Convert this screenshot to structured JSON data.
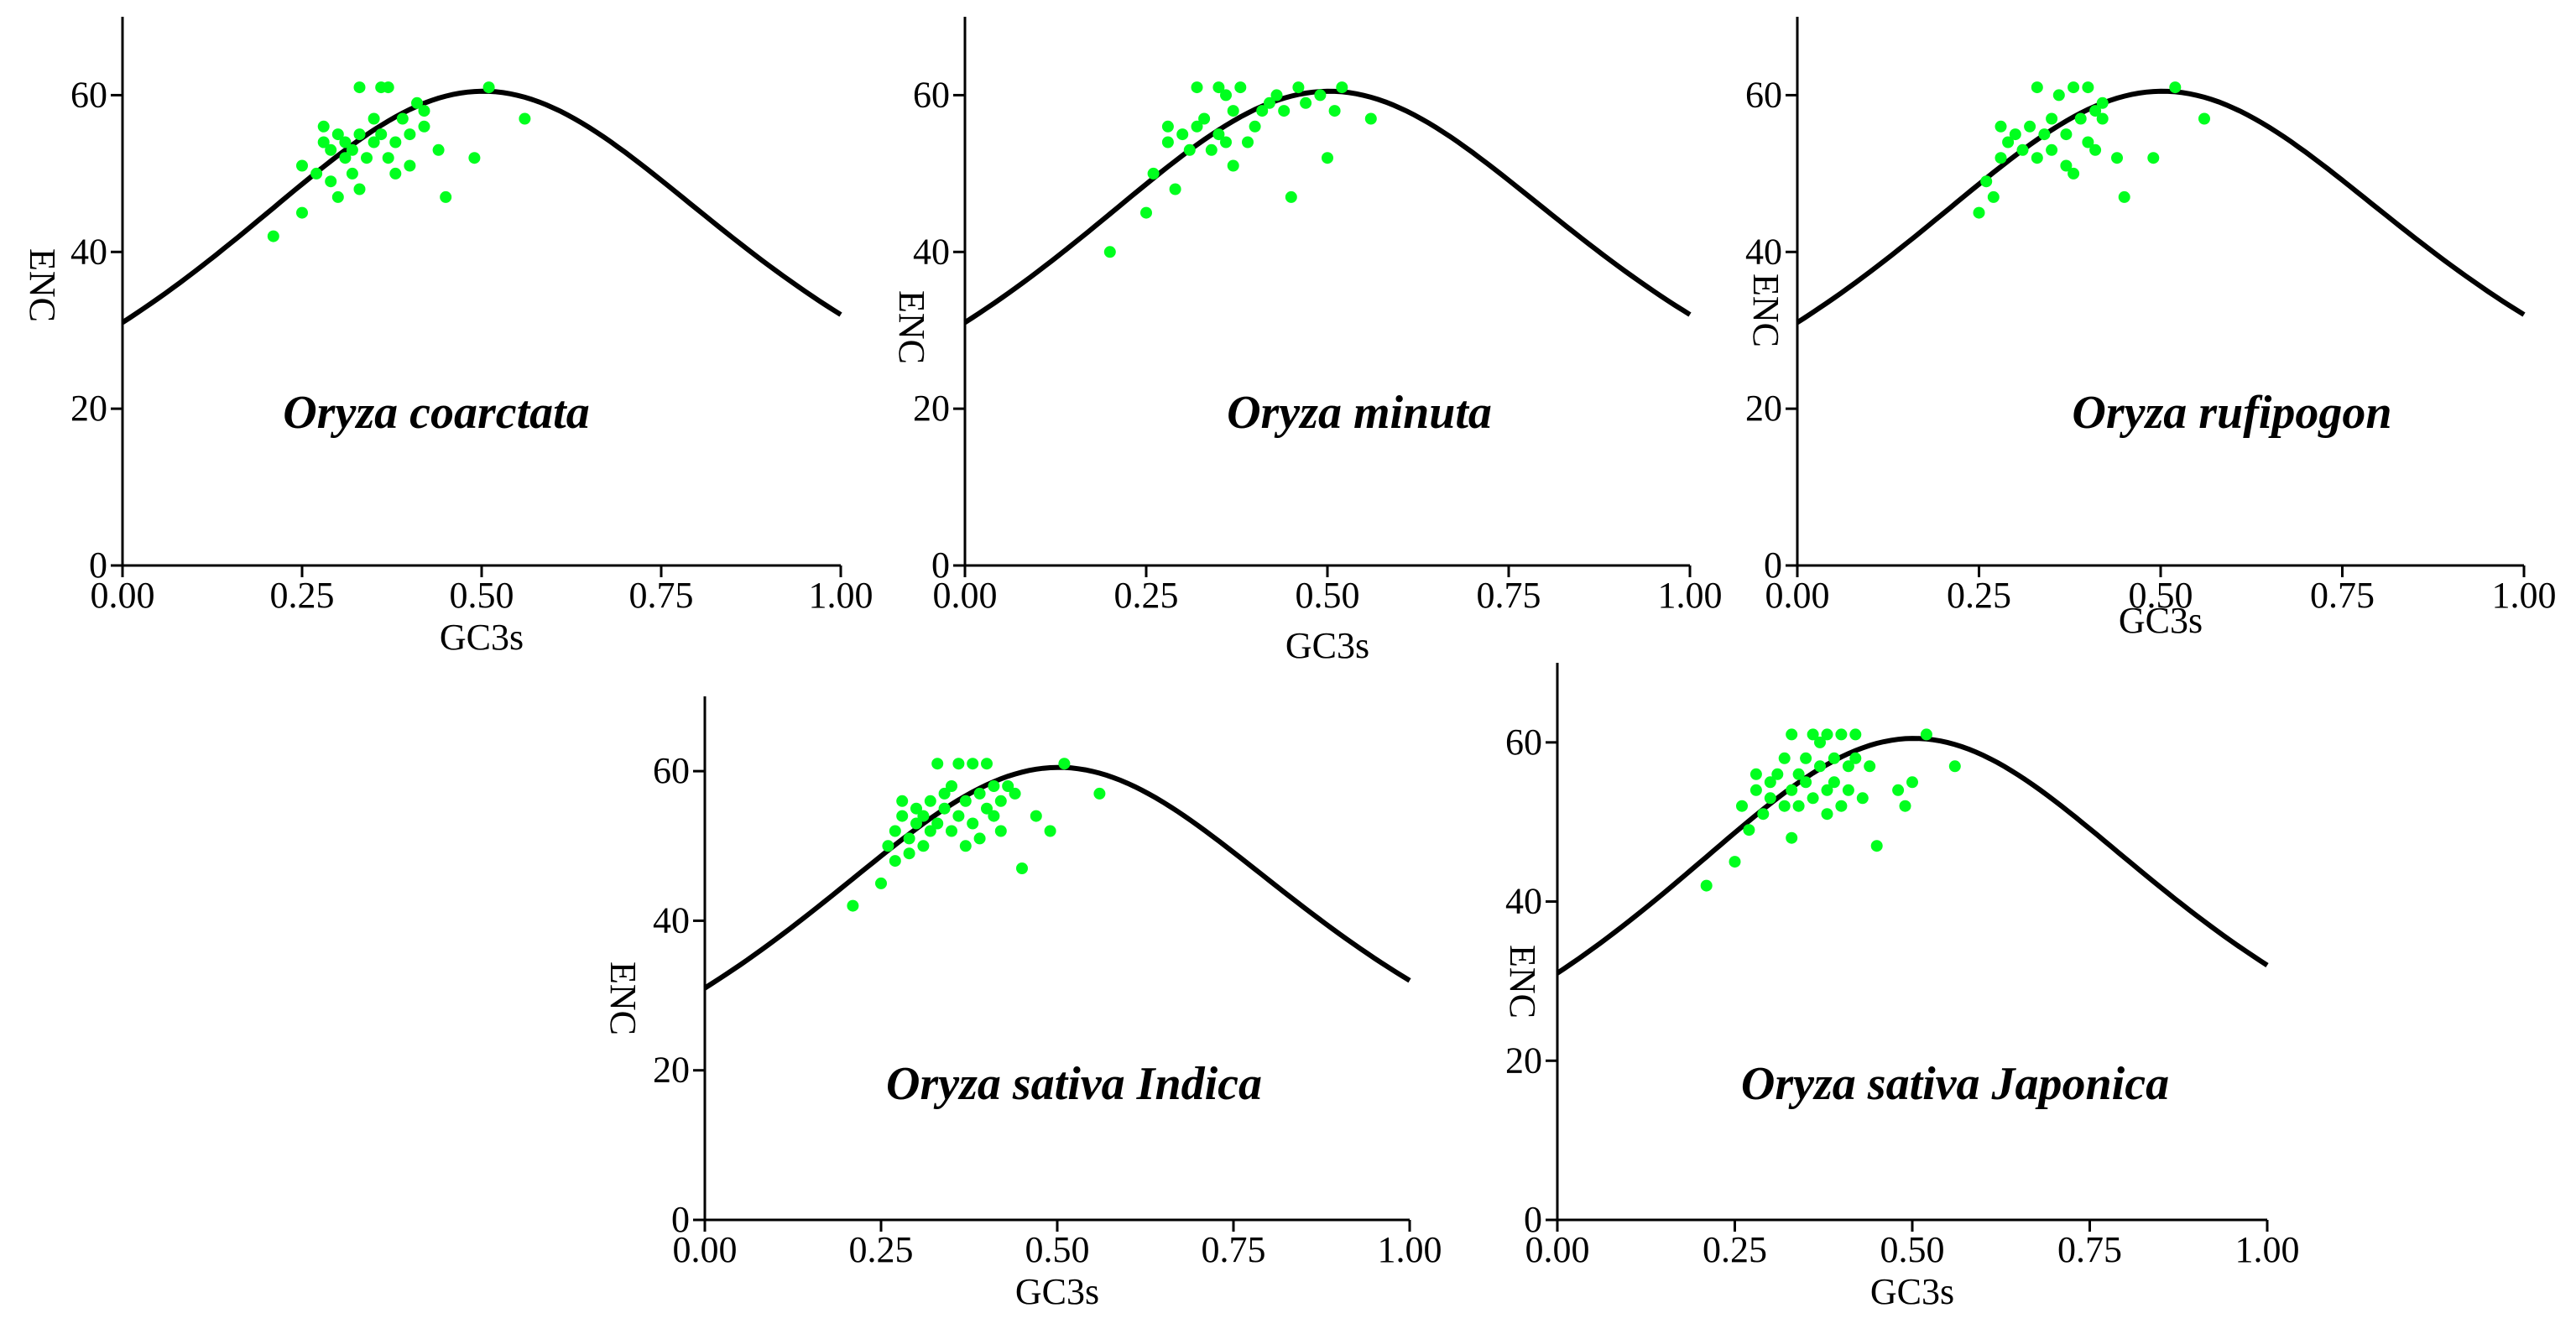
{
  "figure": {
    "description_colors": {
      "points": "#00ff1e",
      "curve": "#000000",
      "background": "#ffffff"
    }
  },
  "chart_data": [
    {
      "type": "scatter",
      "title": "Oryza coarctata",
      "xlabel": "GC3s",
      "ylabel": "ENC",
      "xlim": [
        0,
        1
      ],
      "ylim": [
        0,
        70
      ],
      "xticks": [
        "0.00",
        "0.25",
        "0.50",
        "0.75",
        "1.00"
      ],
      "yticks": [
        "0",
        "20",
        "40",
        "60"
      ],
      "expected_curve": "ENC = 2 + s + 29/(s^2 + (1-s)^2)",
      "points": [
        [
          0.21,
          42
        ],
        [
          0.25,
          45
        ],
        [
          0.25,
          51
        ],
        [
          0.27,
          50
        ],
        [
          0.28,
          56
        ],
        [
          0.28,
          54
        ],
        [
          0.29,
          53
        ],
        [
          0.29,
          49
        ],
        [
          0.3,
          55
        ],
        [
          0.3,
          47
        ],
        [
          0.31,
          52
        ],
        [
          0.31,
          54
        ],
        [
          0.32,
          50
        ],
        [
          0.32,
          53
        ],
        [
          0.33,
          61
        ],
        [
          0.33,
          48
        ],
        [
          0.33,
          55
        ],
        [
          0.34,
          52
        ],
        [
          0.35,
          54
        ],
        [
          0.35,
          57
        ],
        [
          0.36,
          61
        ],
        [
          0.36,
          55
        ],
        [
          0.37,
          61
        ],
        [
          0.37,
          52
        ],
        [
          0.38,
          54
        ],
        [
          0.38,
          50
        ],
        [
          0.39,
          57
        ],
        [
          0.4,
          55
        ],
        [
          0.4,
          51
        ],
        [
          0.41,
          59
        ],
        [
          0.42,
          56
        ],
        [
          0.42,
          58
        ],
        [
          0.44,
          53
        ],
        [
          0.45,
          47
        ],
        [
          0.49,
          52
        ],
        [
          0.51,
          61
        ],
        [
          0.56,
          57
        ]
      ]
    },
    {
      "type": "scatter",
      "title": "Oryza minuta",
      "xlabel": "GC3s",
      "ylabel": "ENC",
      "xlim": [
        0,
        1
      ],
      "ylim": [
        0,
        70
      ],
      "xticks": [
        "0.00",
        "0.25",
        "0.50",
        "0.75",
        "1.00"
      ],
      "yticks": [
        "0",
        "20",
        "40",
        "60"
      ],
      "expected_curve": "ENC = 2 + s + 29/(s^2 + (1-s)^2)",
      "points": [
        [
          0.2,
          40
        ],
        [
          0.25,
          45
        ],
        [
          0.26,
          50
        ],
        [
          0.28,
          54
        ],
        [
          0.28,
          56
        ],
        [
          0.29,
          48
        ],
        [
          0.3,
          55
        ],
        [
          0.31,
          53
        ],
        [
          0.32,
          61
        ],
        [
          0.32,
          56
        ],
        [
          0.33,
          57
        ],
        [
          0.34,
          53
        ],
        [
          0.35,
          61
        ],
        [
          0.35,
          55
        ],
        [
          0.36,
          60
        ],
        [
          0.36,
          54
        ],
        [
          0.37,
          58
        ],
        [
          0.37,
          51
        ],
        [
          0.38,
          61
        ],
        [
          0.39,
          54
        ],
        [
          0.4,
          56
        ],
        [
          0.41,
          58
        ],
        [
          0.42,
          59
        ],
        [
          0.43,
          60
        ],
        [
          0.44,
          58
        ],
        [
          0.45,
          47
        ],
        [
          0.46,
          61
        ],
        [
          0.47,
          59
        ],
        [
          0.49,
          60
        ],
        [
          0.5,
          52
        ],
        [
          0.51,
          58
        ],
        [
          0.52,
          61
        ],
        [
          0.56,
          57
        ]
      ]
    },
    {
      "type": "scatter",
      "title": "Oryza rufipogon",
      "xlabel": "GC3s",
      "ylabel": "ENC",
      "xlim": [
        0,
        1
      ],
      "ylim": [
        0,
        70
      ],
      "xticks": [
        "0.00",
        "0.25",
        "0.50",
        "0.75",
        "1.00"
      ],
      "yticks": [
        "0",
        "20",
        "40",
        "60"
      ],
      "expected_curve": "ENC = 2 + s + 29/(s^2 + (1-s)^2)",
      "points": [
        [
          0.25,
          45
        ],
        [
          0.26,
          49
        ],
        [
          0.27,
          47
        ],
        [
          0.28,
          52
        ],
        [
          0.28,
          56
        ],
        [
          0.29,
          54
        ],
        [
          0.3,
          55
        ],
        [
          0.31,
          53
        ],
        [
          0.32,
          56
        ],
        [
          0.33,
          61
        ],
        [
          0.33,
          52
        ],
        [
          0.34,
          55
        ],
        [
          0.35,
          57
        ],
        [
          0.35,
          53
        ],
        [
          0.36,
          60
        ],
        [
          0.37,
          55
        ],
        [
          0.37,
          51
        ],
        [
          0.38,
          61
        ],
        [
          0.38,
          50
        ],
        [
          0.39,
          57
        ],
        [
          0.4,
          54
        ],
        [
          0.4,
          61
        ],
        [
          0.41,
          58
        ],
        [
          0.41,
          53
        ],
        [
          0.42,
          59
        ],
        [
          0.42,
          57
        ],
        [
          0.44,
          52
        ],
        [
          0.45,
          47
        ],
        [
          0.49,
          52
        ],
        [
          0.52,
          61
        ],
        [
          0.56,
          57
        ]
      ]
    },
    {
      "type": "scatter",
      "title": "Oryza sativa Indica",
      "xlabel": "GC3s",
      "ylabel": "ENC",
      "xlim": [
        0,
        1
      ],
      "ylim": [
        0,
        70
      ],
      "xticks": [
        "0.00",
        "0.25",
        "0.50",
        "0.75",
        "1.00"
      ],
      "yticks": [
        "0",
        "20",
        "40",
        "60"
      ],
      "expected_curve": "ENC = 2 + s + 29/(s^2 + (1-s)^2)",
      "points": [
        [
          0.21,
          42
        ],
        [
          0.25,
          45
        ],
        [
          0.26,
          50
        ],
        [
          0.27,
          48
        ],
        [
          0.27,
          52
        ],
        [
          0.28,
          54
        ],
        [
          0.28,
          56
        ],
        [
          0.29,
          49
        ],
        [
          0.29,
          51
        ],
        [
          0.3,
          53
        ],
        [
          0.3,
          55
        ],
        [
          0.31,
          54
        ],
        [
          0.31,
          50
        ],
        [
          0.32,
          52
        ],
        [
          0.32,
          56
        ],
        [
          0.33,
          61
        ],
        [
          0.33,
          53
        ],
        [
          0.34,
          55
        ],
        [
          0.34,
          57
        ],
        [
          0.35,
          52
        ],
        [
          0.35,
          58
        ],
        [
          0.36,
          61
        ],
        [
          0.36,
          54
        ],
        [
          0.37,
          56
        ],
        [
          0.37,
          50
        ],
        [
          0.38,
          61
        ],
        [
          0.38,
          53
        ],
        [
          0.39,
          57
        ],
        [
          0.39,
          51
        ],
        [
          0.4,
          55
        ],
        [
          0.4,
          61
        ],
        [
          0.41,
          58
        ],
        [
          0.41,
          54
        ],
        [
          0.42,
          56
        ],
        [
          0.42,
          52
        ],
        [
          0.43,
          58
        ],
        [
          0.44,
          57
        ],
        [
          0.45,
          47
        ],
        [
          0.47,
          54
        ],
        [
          0.49,
          52
        ],
        [
          0.51,
          61
        ],
        [
          0.56,
          57
        ]
      ]
    },
    {
      "type": "scatter",
      "title": "Oryza sativa Japonica",
      "xlabel": "GC3s",
      "ylabel": "ENC",
      "xlim": [
        0,
        1
      ],
      "ylim": [
        0,
        70
      ],
      "xticks": [
        "0.00",
        "0.25",
        "0.50",
        "0.75",
        "1.00"
      ],
      "yticks": [
        "0",
        "20",
        "40",
        "60"
      ],
      "expected_curve": "ENC = 2 + s + 29/(s^2 + (1-s)^2)",
      "points": [
        [
          0.21,
          42
        ],
        [
          0.25,
          45
        ],
        [
          0.26,
          52
        ],
        [
          0.27,
          49
        ],
        [
          0.28,
          54
        ],
        [
          0.28,
          56
        ],
        [
          0.29,
          51
        ],
        [
          0.3,
          55
        ],
        [
          0.3,
          53
        ],
        [
          0.31,
          56
        ],
        [
          0.32,
          52
        ],
        [
          0.32,
          58
        ],
        [
          0.33,
          61
        ],
        [
          0.33,
          48
        ],
        [
          0.33,
          54
        ],
        [
          0.34,
          56
        ],
        [
          0.34,
          52
        ],
        [
          0.35,
          58
        ],
        [
          0.35,
          55
        ],
        [
          0.36,
          61
        ],
        [
          0.36,
          53
        ],
        [
          0.37,
          57
        ],
        [
          0.37,
          60
        ],
        [
          0.38,
          61
        ],
        [
          0.38,
          54
        ],
        [
          0.38,
          51
        ],
        [
          0.39,
          58
        ],
        [
          0.39,
          55
        ],
        [
          0.4,
          61
        ],
        [
          0.4,
          52
        ],
        [
          0.41,
          57
        ],
        [
          0.41,
          54
        ],
        [
          0.42,
          61
        ],
        [
          0.42,
          58
        ],
        [
          0.43,
          53
        ],
        [
          0.44,
          57
        ],
        [
          0.45,
          47
        ],
        [
          0.48,
          54
        ],
        [
          0.49,
          52
        ],
        [
          0.5,
          55
        ],
        [
          0.52,
          61
        ],
        [
          0.56,
          57
        ]
      ]
    }
  ]
}
